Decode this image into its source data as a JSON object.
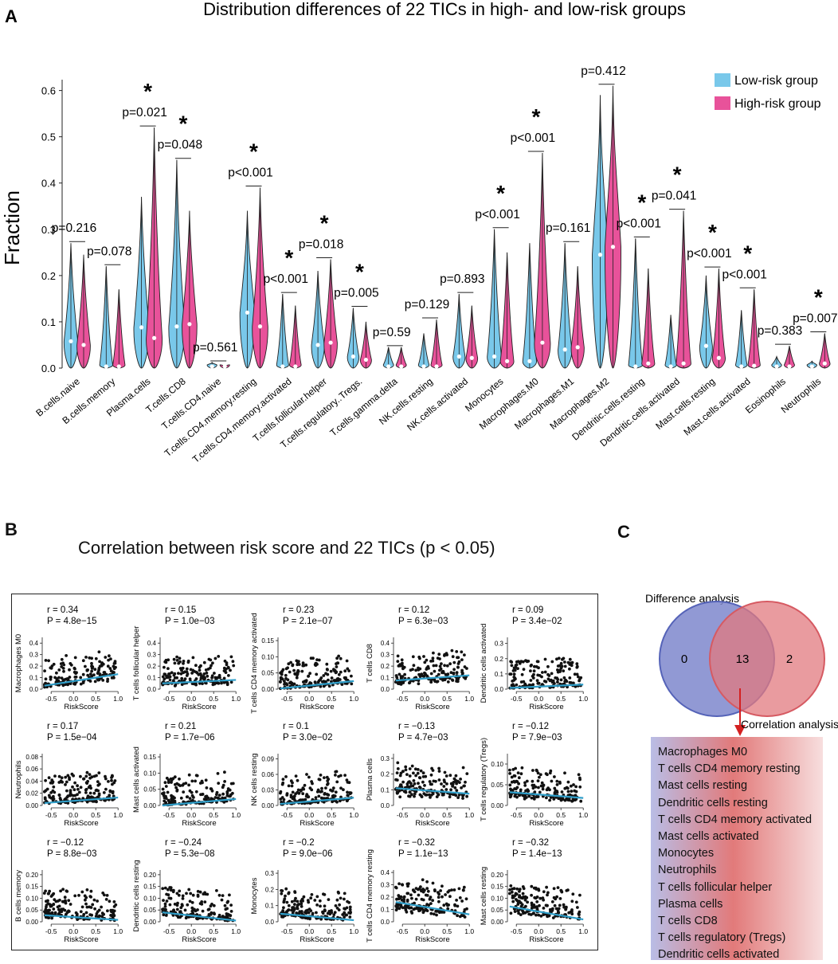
{
  "panelA": {
    "letter": "A",
    "title": "Distribution differences of 22 TICs in high- and low-risk groups",
    "ylabel": "Fraction",
    "legend": [
      {
        "label": "Low-risk group",
        "color": "#79c8ea"
      },
      {
        "label": "High-risk group",
        "color": "#e8529a"
      }
    ]
  },
  "panelB": {
    "letter": "B",
    "title": "Correlation between risk score and 22 TICs (p < 0.05)"
  },
  "panelC": {
    "letter": "C",
    "diff_label": "Difference analysis",
    "corr_label": "Correlation analysis",
    "left_only": "0",
    "overlap": "13",
    "right_only": "2",
    "cells": [
      "Macrophages M0",
      "T cells CD4 memory resting",
      "Mast cells resting",
      "Dendritic cells resting",
      "T cells CD4 memory activated",
      "Mast cells activated",
      "Monocytes",
      "Neutrophils",
      "T cells follicular helper",
      "Plasma cells",
      "T cells CD8",
      "T cells regulatory (Tregs)",
      "Dendritic cells activated"
    ]
  },
  "colors": {
    "low": "#79c8ea",
    "high": "#e8529a",
    "fit": "#2f9ec9",
    "venn_left": "#7e87cc",
    "venn_right": "#e2797f",
    "arrow": "#d42020"
  },
  "chart_data": [
    {
      "type": "violin",
      "title": "Distribution differences of 22 TICs in high- and low-risk groups",
      "xlabel": "",
      "ylabel": "Fraction",
      "ylim": [
        0,
        0.62
      ],
      "yticks": [
        0.0,
        0.1,
        0.2,
        0.3,
        0.4,
        0.5,
        0.6
      ],
      "ytick_labels": [
        "0.0",
        "0.1",
        "0.2",
        "0.3",
        "0.4",
        "0.5",
        "0.6"
      ],
      "series_names": [
        "Low-risk group",
        "High-risk group"
      ],
      "categories": [
        "B.cells.naive",
        "B.cells.memory",
        "Plasma.cells",
        "T.cells.CD8",
        "T.cells.CD4.naive",
        "T.cells.CD4.memory.resting",
        "T.cells.CD4.memory.activated",
        "T.cells.follicular.helper",
        "T.cells.regulatory..Tregs.",
        "T.cells.gamma.delta",
        "NK.cells.resting",
        "NK.cells.activated",
        "Monocytes",
        "Macrophages.M0",
        "Macrophages.M1",
        "Macrophages.M2",
        "Dendritic.cells.resting",
        "Dendritic.cells.activated",
        "Mast.cells.resting",
        "Mast.cells.activated",
        "Eosinophils",
        "Neutrophils"
      ],
      "pvalues": [
        "p=0.216",
        "p=0.078",
        "p=0.021",
        "p=0.048",
        "p=0.561",
        "p<0.001",
        "p<0.001",
        "p=0.018",
        "p=0.005",
        "p=0.59",
        "p=0.129",
        "p=0.893",
        "p<0.001",
        "p<0.001",
        "p=0.161",
        "p=0.412",
        "p<0.001",
        "p=0.041",
        "p<0.001",
        "p<0.001",
        "p=0.383",
        "p=0.007"
      ],
      "significant": [
        false,
        false,
        true,
        true,
        false,
        true,
        true,
        true,
        true,
        false,
        false,
        false,
        true,
        true,
        false,
        false,
        true,
        true,
        true,
        true,
        false,
        true
      ],
      "star": "*",
      "low_max": [
        0.27,
        0.22,
        0.37,
        0.45,
        0.012,
        0.34,
        0.16,
        0.21,
        0.13,
        0.045,
        0.075,
        0.16,
        0.3,
        0.27,
        0.27,
        0.59,
        0.28,
        0.115,
        0.2,
        0.125,
        0.025,
        0.015
      ],
      "high_max": [
        0.245,
        0.17,
        0.52,
        0.34,
        0.004,
        0.39,
        0.135,
        0.235,
        0.1,
        0.045,
        0.105,
        0.135,
        0.25,
        0.465,
        0.22,
        0.61,
        0.215,
        0.34,
        0.215,
        0.17,
        0.048,
        0.075
      ],
      "low_median": [
        0.058,
        0.0,
        0.088,
        0.09,
        0.0,
        0.12,
        0.0,
        0.05,
        0.025,
        0.0,
        0.0,
        0.025,
        0.025,
        0.015,
        0.04,
        0.245,
        0.0,
        0.0,
        0.048,
        0.0,
        0.0,
        0.0
      ],
      "high_median": [
        0.05,
        0.0,
        0.065,
        0.095,
        0.0,
        0.09,
        0.0,
        0.055,
        0.018,
        0.0,
        0.0,
        0.022,
        0.015,
        0.055,
        0.045,
        0.262,
        0.01,
        0.01,
        0.022,
        0.005,
        0.0,
        0.01
      ]
    },
    {
      "type": "scatter",
      "title": "Correlation between risk score and 22 TICs (p < 0.05)",
      "xlabel": "RiskScore",
      "xlim": [
        -0.7,
        1.05
      ],
      "xticks": [
        -0.5,
        0.0,
        0.5,
        1.0
      ],
      "xtick_labels": [
        "-0.5",
        "0.0",
        "0.5",
        "1.0"
      ],
      "panels": [
        {
          "ylabel": "Macrophages M0",
          "r": "r = 0.34",
          "p": "P = 4.8e−15",
          "yticks": [
            0.0,
            0.1,
            0.2,
            0.3,
            0.4
          ],
          "ytick_labels": [
            "0.0",
            "0.1",
            "0.2",
            "0.3",
            "0.4"
          ],
          "ymax": 0.45,
          "fit": [
            0.03,
            0.13
          ]
        },
        {
          "ylabel": "T cells follicular helper",
          "r": "r = 0.15",
          "p": "P = 1.0e−03",
          "yticks": [
            0.0,
            0.1,
            0.2,
            0.3,
            0.4
          ],
          "ytick_labels": [
            "0.0",
            "0.1",
            "0.2",
            "0.3",
            "0.4"
          ],
          "ymax": 0.45,
          "fit": [
            0.05,
            0.08
          ]
        },
        {
          "ylabel": "T cells CD4 memory activated",
          "r": "r = 0.23",
          "p": "P = 2.1e−07",
          "yticks": [
            0.0,
            0.05,
            0.1,
            0.15
          ],
          "ytick_labels": [
            "0.00",
            "0.05",
            "0.10",
            "0.15"
          ],
          "ymax": 0.16,
          "fit": [
            0.002,
            0.025
          ]
        },
        {
          "ylabel": "T cells CD8",
          "r": "r = 0.12",
          "p": "P = 6.3e−03",
          "yticks": [
            0.0,
            0.1,
            0.2,
            0.3,
            0.4
          ],
          "ytick_labels": [
            "0.0",
            "0.1",
            "0.2",
            "0.3",
            "0.4"
          ],
          "ymax": 0.45,
          "fit": [
            0.075,
            0.12
          ]
        },
        {
          "ylabel": "Dendritic cells activated",
          "r": "r = 0.09",
          "p": "P = 3.4e−02",
          "yticks": [
            0.0,
            0.1,
            0.2,
            0.3
          ],
          "ytick_labels": [
            "0.0",
            "0.1",
            "0.2",
            "0.3"
          ],
          "ymax": 0.34,
          "fit": [
            0.008,
            0.03
          ]
        },
        {
          "ylabel": "Neutrophils",
          "r": "r = 0.17",
          "p": "P = 1.5e−04",
          "yticks": [
            0.0,
            0.02,
            0.04,
            0.06,
            0.08
          ],
          "ytick_labels": [
            "0.00",
            "0.02",
            "0.04",
            "0.06",
            "0.08"
          ],
          "ymax": 0.085,
          "fit": [
            0.004,
            0.013
          ]
        },
        {
          "ylabel": "Mast cells activated",
          "r": "r = 0.21",
          "p": "P = 1.7e−06",
          "yticks": [
            0.0,
            0.05,
            0.1,
            0.15
          ],
          "ytick_labels": [
            "0.00",
            "0.05",
            "0.10",
            "0.15"
          ],
          "ymax": 0.16,
          "fit": [
            0.0,
            0.02
          ]
        },
        {
          "ylabel": "NK cells resting",
          "r": "r = 0.1",
          "p": "P = 3.0e−02",
          "yticks": [
            0.0,
            0.03,
            0.06,
            0.09
          ],
          "ytick_labels": [
            "0.00",
            "0.03",
            "0.06",
            "0.09"
          ],
          "ymax": 0.1,
          "fit": [
            0.003,
            0.015
          ]
        },
        {
          "ylabel": "Plasma cells",
          "r": "r = −0.13",
          "p": "P = 4.7e−03",
          "yticks": [
            0.0,
            0.1,
            0.2,
            0.3
          ],
          "ytick_labels": [
            "0.0",
            "0.1",
            "0.2",
            "0.3"
          ],
          "ymax": 0.33,
          "fit": [
            0.11,
            0.075
          ]
        },
        {
          "ylabel": "T cells regulatory (Tregs)",
          "r": "r = −0.12",
          "p": "P = 7.9e−03",
          "yticks": [
            0.0,
            0.05,
            0.1
          ],
          "ytick_labels": [
            "0.00",
            "0.05",
            "0.10"
          ],
          "ymax": 0.125,
          "fit": [
            0.032,
            0.018
          ]
        },
        {
          "ylabel": "B cells memory",
          "r": "r = −0.12",
          "p": "P = 8.8e−03",
          "yticks": [
            0.0,
            0.05,
            0.1,
            0.15,
            0.2
          ],
          "ytick_labels": [
            "0.00",
            "0.05",
            "0.10",
            "0.15",
            "0.20"
          ],
          "ymax": 0.22,
          "fit": [
            0.028,
            0.008
          ]
        },
        {
          "ylabel": "Dendritic cells resting",
          "r": "r = −0.24",
          "p": "P = 5.3e−08",
          "yticks": [
            0.0,
            0.05,
            0.1,
            0.15,
            0.2
          ],
          "ytick_labels": [
            "0.00",
            "0.05",
            "0.10",
            "0.15",
            "0.20"
          ],
          "ymax": 0.22,
          "fit": [
            0.04,
            0.005
          ]
        },
        {
          "ylabel": "Monocytes",
          "r": "r = −0.2",
          "p": "P = 9.0e−06",
          "yticks": [
            0.0,
            0.1,
            0.2,
            0.3
          ],
          "ytick_labels": [
            "0.0",
            "0.1",
            "0.2",
            "0.3"
          ],
          "ymax": 0.32,
          "fit": [
            0.05,
            0.01
          ]
        },
        {
          "ylabel": "T cells CD4 memory resting",
          "r": "r = −0.32",
          "p": "P = 1.1e−13",
          "yticks": [
            0.0,
            0.1,
            0.2,
            0.3,
            0.4
          ],
          "ytick_labels": [
            "0.0",
            "0.1",
            "0.2",
            "0.3",
            "0.4"
          ],
          "ymax": 0.42,
          "fit": [
            0.16,
            0.06
          ]
        },
        {
          "ylabel": "Mast cells resting",
          "r": "r = −0.32",
          "p": "P = 1.4e−13",
          "yticks": [
            0.0,
            0.05,
            0.1,
            0.15,
            0.2
          ],
          "ytick_labels": [
            "0.00",
            "0.05",
            "0.10",
            "0.15",
            "0.20"
          ],
          "ymax": 0.22,
          "fit": [
            0.065,
            0.01
          ]
        }
      ]
    }
  ]
}
